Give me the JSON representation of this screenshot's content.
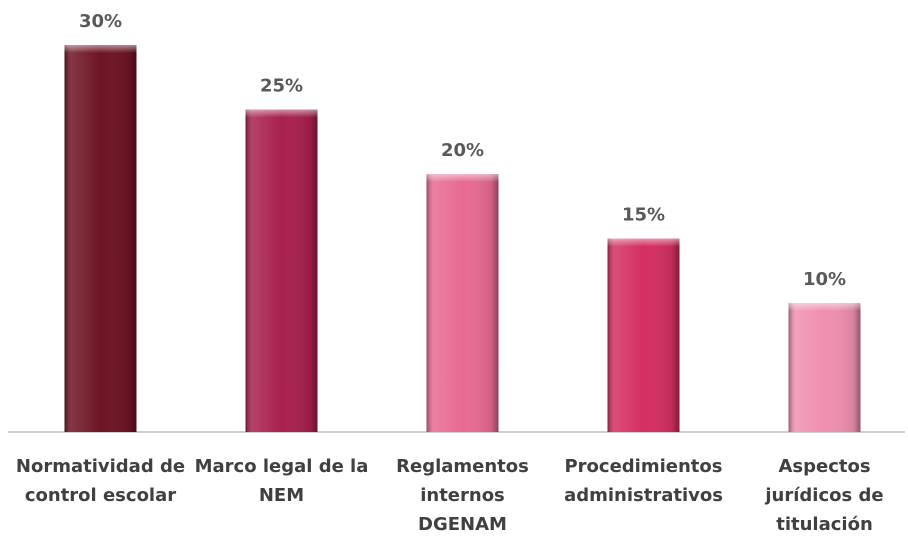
{
  "chart_data": {
    "type": "bar",
    "categories": [
      "Normatividad de control escolar",
      "Marco legal de la NEM",
      "Reglamentos internos DGENAM",
      "Procedimientos administrativos",
      "Aspectos jurídicos de titulación"
    ],
    "values": [
      30,
      25,
      20,
      15,
      10
    ],
    "value_labels": [
      "30%",
      "25%",
      "20%",
      "15%",
      "10%"
    ],
    "colors": [
      "#6e1423",
      "#a8204e",
      "#e86a93",
      "#d42f61",
      "#f08fb0"
    ],
    "ylim": [
      0,
      30
    ]
  }
}
